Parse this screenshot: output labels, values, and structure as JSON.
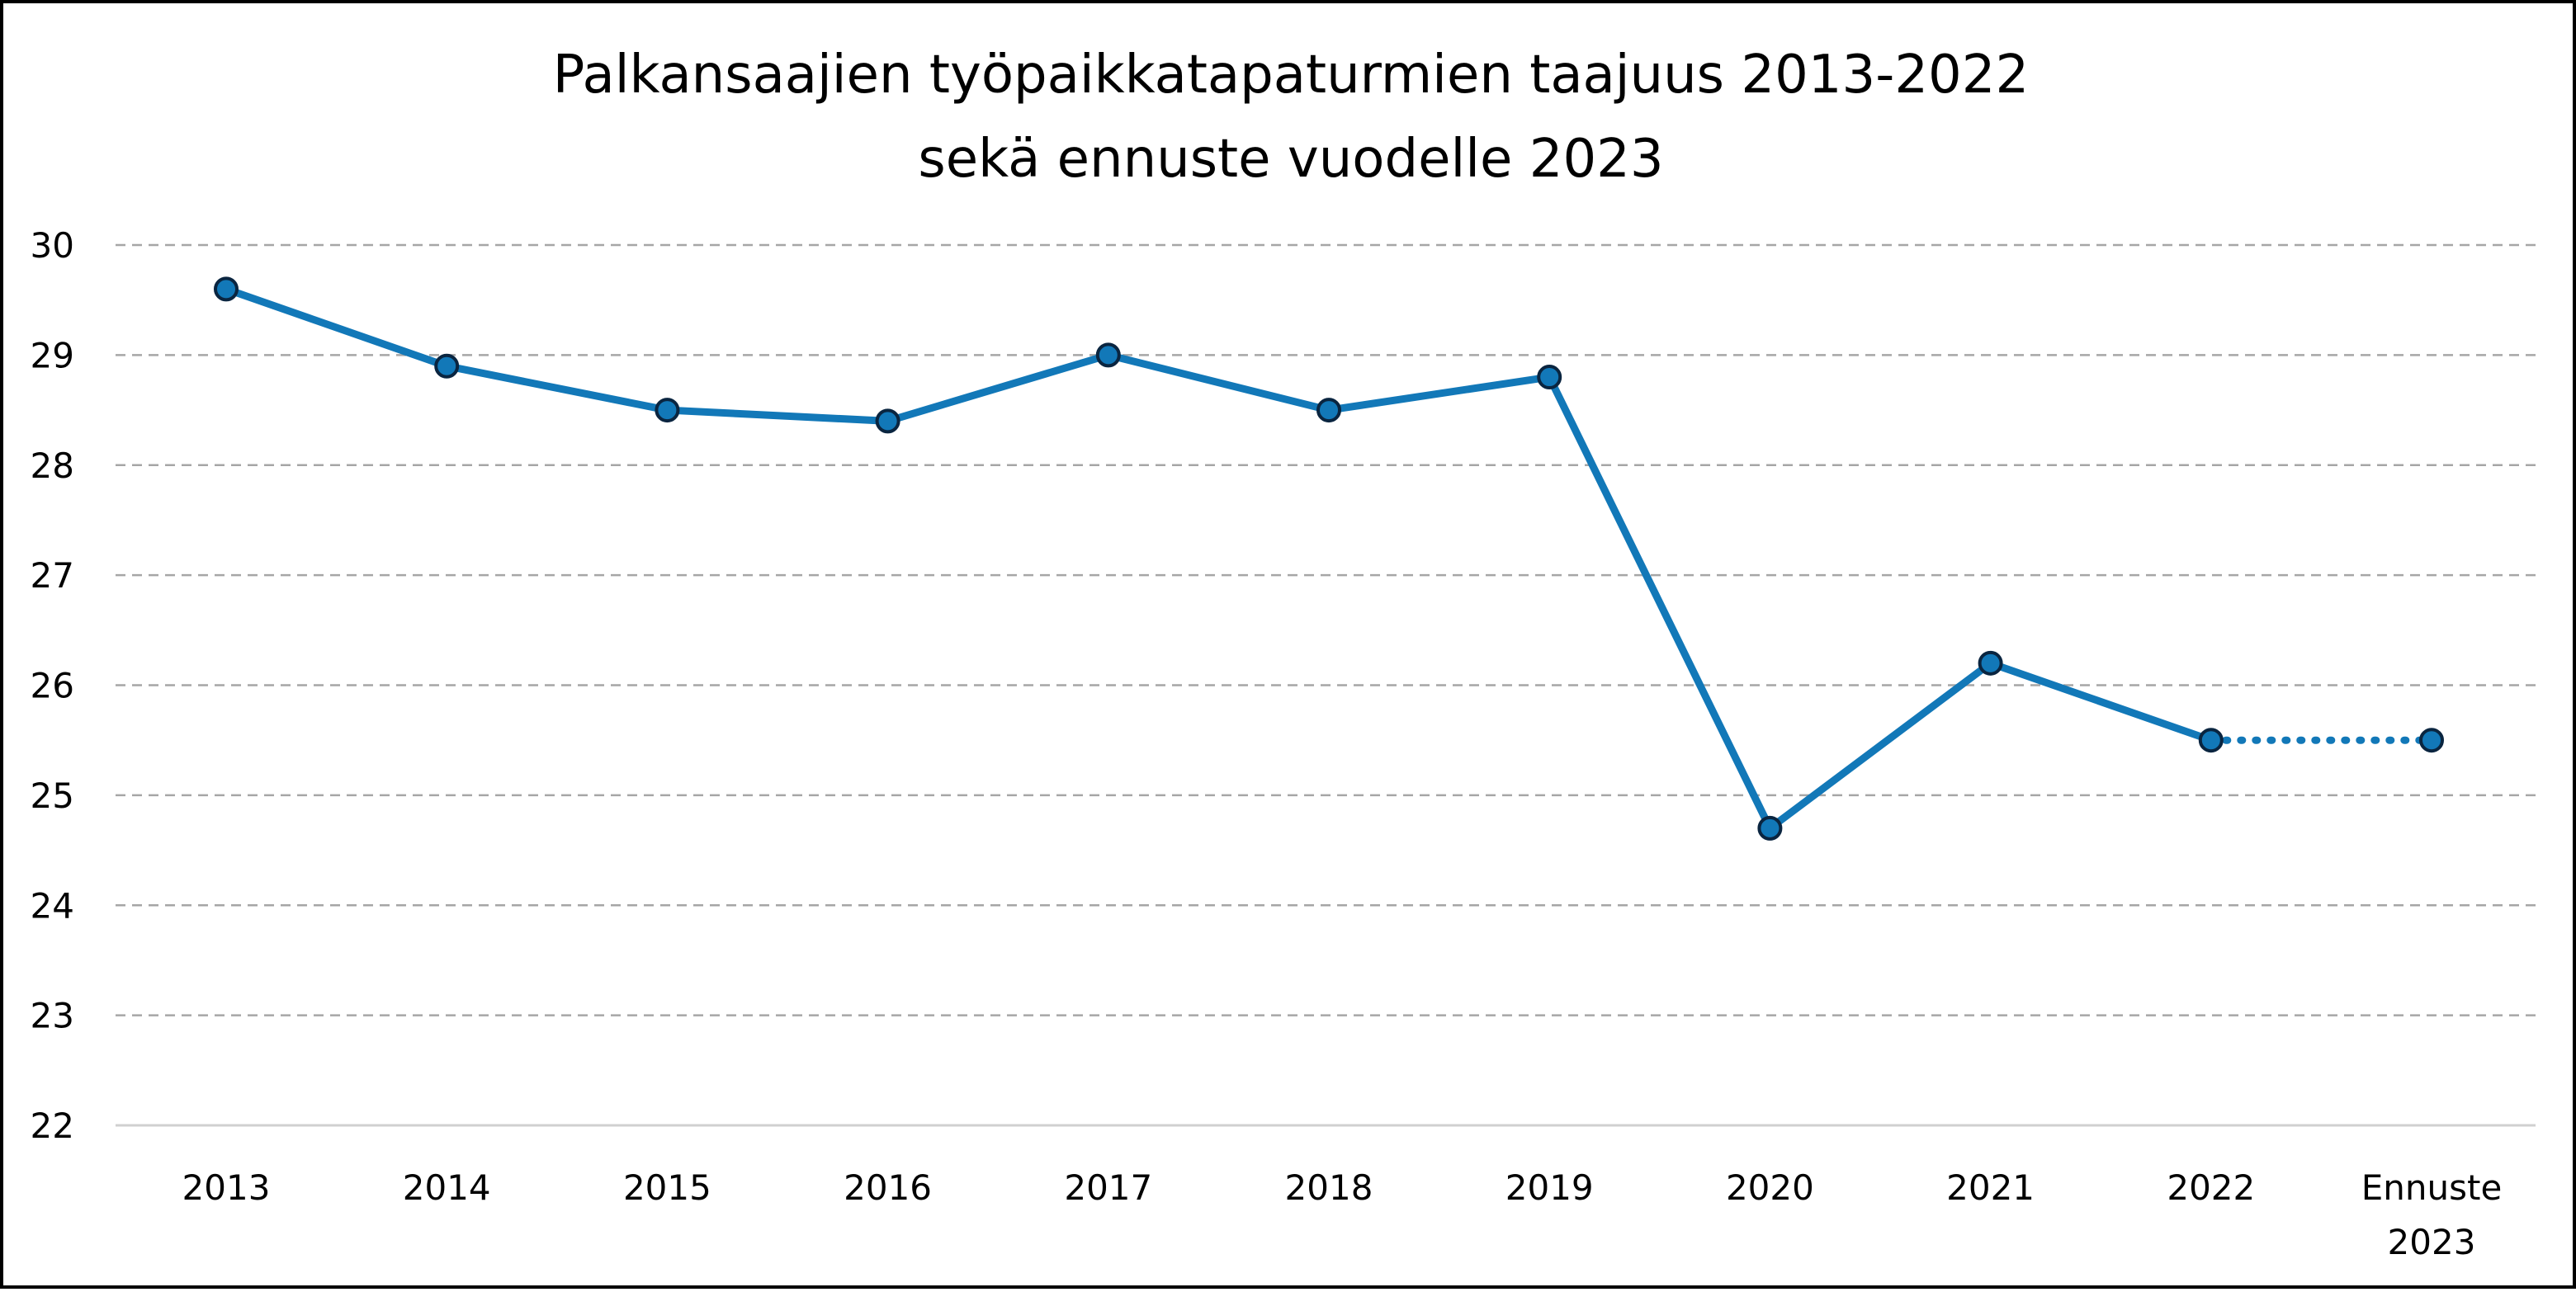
{
  "chart_data": {
    "type": "line",
    "title": "Palkansaajien työpaikkatapaturmien taajuus 2013-2022",
    "subtitle": "sekä ennuste vuodelle 2023",
    "categories": [
      "2013",
      "2014",
      "2015",
      "2016",
      "2017",
      "2018",
      "2019",
      "2020",
      "2021",
      "2022",
      "Ennuste 2023"
    ],
    "category_lines": [
      [
        "2013"
      ],
      [
        "2014"
      ],
      [
        "2015"
      ],
      [
        "2016"
      ],
      [
        "2017"
      ],
      [
        "2018"
      ],
      [
        "2019"
      ],
      [
        "2020"
      ],
      [
        "2021"
      ],
      [
        "2022"
      ],
      [
        "Ennuste",
        "2023"
      ]
    ],
    "series": [
      {
        "name": "Taajuus",
        "values": [
          29.6,
          28.9,
          28.5,
          28.4,
          29.0,
          28.5,
          28.8,
          24.7,
          26.2,
          25.5,
          25.5
        ],
        "forecast_from_index": 9
      }
    ],
    "xlabel": "",
    "ylabel": "",
    "ylim": [
      22,
      30
    ],
    "yticks": [
      22,
      23,
      24,
      25,
      26,
      27,
      28,
      29,
      30
    ],
    "grid": true,
    "line_color": "#1278b8",
    "marker_edge_color": "#0a2540",
    "grid_color": "#a6a6a6"
  }
}
